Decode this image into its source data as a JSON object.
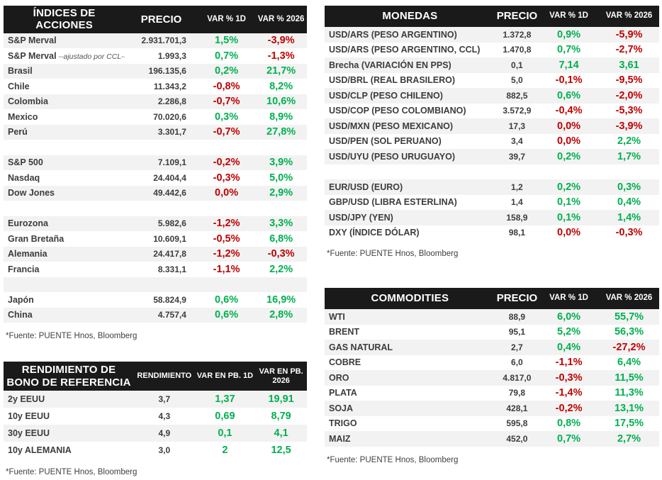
{
  "colors": {
    "positive": "#00b050",
    "negative": "#c00000",
    "header_bg": "#1a1a1a",
    "stripe": "#f2f2f2"
  },
  "indices": {
    "title": "ÍNDICES DE ACCIONES",
    "columns": [
      "PRECIO",
      "VAR % 1D",
      "VAR % 2026"
    ],
    "source": "*Fuente: PUENTE Hnos, Bloomberg",
    "rows": [
      {
        "label": "S&P Merval",
        "price": "2.931.701,3",
        "var1d": "1,5%",
        "var1d_color": "pos",
        "var2026": "-3,9%",
        "var2026_color": "neg"
      },
      {
        "label": "S&P Merval",
        "note": "--ajustado por CCL--",
        "price": "1.993,3",
        "var1d": "0,7%",
        "var1d_color": "pos",
        "var2026": "-1,3%",
        "var2026_color": "neg"
      },
      {
        "label": "Brasil",
        "price": "196.135,6",
        "var1d": "0,2%",
        "var1d_color": "pos",
        "var2026": "21,7%",
        "var2026_color": "pos"
      },
      {
        "label": "Chile",
        "price": "11.343,2",
        "var1d": "-0,8%",
        "var1d_color": "neg",
        "var2026": "8,2%",
        "var2026_color": "pos"
      },
      {
        "label": "Colombia",
        "price": "2.286,8",
        "var1d": "-0,7%",
        "var1d_color": "neg",
        "var2026": "10,6%",
        "var2026_color": "pos"
      },
      {
        "label": "Mexico",
        "price": "70.020,6",
        "var1d": "0,3%",
        "var1d_color": "pos",
        "var2026": "8,9%",
        "var2026_color": "pos"
      },
      {
        "label": "Perú",
        "price": "3.301,7",
        "var1d": "-0,7%",
        "var1d_color": "neg",
        "var2026": "27,8%",
        "var2026_color": "pos"
      },
      {
        "separator": true
      },
      {
        "label": "S&P 500",
        "price": "7.109,1",
        "var1d": "-0,2%",
        "var1d_color": "neg",
        "var2026": "3,9%",
        "var2026_color": "pos"
      },
      {
        "label": "Nasdaq",
        "price": "24.404,4",
        "var1d": "-0,3%",
        "var1d_color": "neg",
        "var2026": "5,0%",
        "var2026_color": "pos"
      },
      {
        "label": "Dow Jones",
        "price": "49.442,6",
        "var1d": "0,0%",
        "var1d_color": "neg",
        "var2026": "2,9%",
        "var2026_color": "pos"
      },
      {
        "separator": true
      },
      {
        "label": "Eurozona",
        "price": "5.982,6",
        "var1d": "-1,2%",
        "var1d_color": "neg",
        "var2026": "3,3%",
        "var2026_color": "pos"
      },
      {
        "label": "Gran Bretaña",
        "price": "10.609,1",
        "var1d": "-0,5%",
        "var1d_color": "neg",
        "var2026": "6,8%",
        "var2026_color": "pos"
      },
      {
        "label": "Alemania",
        "price": "24.417,8",
        "var1d": "-1,2%",
        "var1d_color": "neg",
        "var2026": "-0,3%",
        "var2026_color": "neg"
      },
      {
        "label": "Francia",
        "price": "8.331,1",
        "var1d": "-1,1%",
        "var1d_color": "neg",
        "var2026": "2,2%",
        "var2026_color": "pos"
      },
      {
        "separator": true
      },
      {
        "label": "Japón",
        "price": "58.824,9",
        "var1d": "0,6%",
        "var1d_color": "pos",
        "var2026": "16,9%",
        "var2026_color": "pos"
      },
      {
        "label": "China",
        "price": "4.757,4",
        "var1d": "0,6%",
        "var1d_color": "pos",
        "var2026": "2,8%",
        "var2026_color": "pos"
      }
    ]
  },
  "bonds": {
    "title": "RENDIMIENTO DE BONO DE REFERENCIA",
    "columns": [
      "RENDIMIENTO",
      "VAR EN PB. 1D",
      "VAR EN PB. 2026"
    ],
    "source": "*Fuente: PUENTE Hnos, Bloomberg",
    "rows": [
      {
        "label": "2y EEUU",
        "price": "3,7",
        "var1d": "1,37",
        "var1d_color": "pos",
        "var2026": "19,91",
        "var2026_color": "pos"
      },
      {
        "label": "10y EEUU",
        "price": "4,3",
        "var1d": "0,69",
        "var1d_color": "pos",
        "var2026": "8,79",
        "var2026_color": "pos"
      },
      {
        "label": "30y EEUU",
        "price": "4,9",
        "var1d": "0,1",
        "var1d_color": "pos",
        "var2026": "4,1",
        "var2026_color": "pos"
      },
      {
        "label": "10y ALEMANIA",
        "price": "3,0",
        "var1d": "2",
        "var1d_color": "pos",
        "var2026": "12,5",
        "var2026_color": "pos"
      }
    ]
  },
  "currencies": {
    "title": "MONEDAS",
    "columns": [
      "PRECIO",
      "VAR % 1D",
      "VAR % 2026"
    ],
    "source": "*Fuente: PUENTE Hnos, Bloomberg",
    "rows": [
      {
        "label": "USD/ARS (PESO ARGENTINO)",
        "price": "1.372,8",
        "var1d": "0,9%",
        "var1d_color": "pos",
        "var2026": "-5,9%",
        "var2026_color": "neg"
      },
      {
        "label": "USD/ARS (PESO ARGENTINO, CCL)",
        "price": "1.470,8",
        "var1d": "0,7%",
        "var1d_color": "pos",
        "var2026": "-2,7%",
        "var2026_color": "neg"
      },
      {
        "label": "Brecha (VARIACIÓN EN PPS)",
        "price": "0,1",
        "var1d": "7,14",
        "var1d_color": "pos",
        "var2026": "3,61",
        "var2026_color": "pos"
      },
      {
        "label": "USD/BRL (REAL BRASILERO)",
        "price": "5,0",
        "var1d": "-0,1%",
        "var1d_color": "neg",
        "var2026": "-9,5%",
        "var2026_color": "neg"
      },
      {
        "label": "USD/CLP (PESO CHILENO)",
        "price": "882,5",
        "var1d": "0,6%",
        "var1d_color": "pos",
        "var2026": "-2,0%",
        "var2026_color": "neg"
      },
      {
        "label": "USD/COP (PESO COLOMBIANO)",
        "price": "3.572,9",
        "var1d": "-0,4%",
        "var1d_color": "neg",
        "var2026": "-5,3%",
        "var2026_color": "neg"
      },
      {
        "label": "USD/MXN (PESO MEXICANO)",
        "price": "17,3",
        "var1d": "0,0%",
        "var1d_color": "neg",
        "var2026": "-3,9%",
        "var2026_color": "neg"
      },
      {
        "label": "USD/PEN (SOL PERUANO)",
        "price": "3,4",
        "var1d": "0,0%",
        "var1d_color": "neg",
        "var2026": "2,2%",
        "var2026_color": "pos"
      },
      {
        "label": "USD/UYU (PESO URUGUAYO)",
        "price": "39,7",
        "var1d": "0,2%",
        "var1d_color": "pos",
        "var2026": "1,7%",
        "var2026_color": "pos"
      },
      {
        "separator": true
      },
      {
        "label": "EUR/USD (EURO)",
        "price": "1,2",
        "var1d": "0,2%",
        "var1d_color": "pos",
        "var2026": "0,3%",
        "var2026_color": "pos"
      },
      {
        "label": "GBP/USD (LIBRA ESTERLINA)",
        "price": "1,4",
        "var1d": "0,1%",
        "var1d_color": "pos",
        "var2026": "0,4%",
        "var2026_color": "pos"
      },
      {
        "label": "USD/JPY (YEN)",
        "price": "158,9",
        "var1d": "0,1%",
        "var1d_color": "pos",
        "var2026": "1,4%",
        "var2026_color": "pos"
      },
      {
        "label": "DXY (ÍNDICE DÓLAR)",
        "price": "98,1",
        "var1d": "0,0%",
        "var1d_color": "neg",
        "var2026": "-0,3%",
        "var2026_color": "neg"
      }
    ]
  },
  "commodities": {
    "title": "COMMODITIES",
    "columns": [
      "PRECIO",
      "VAR % 1D",
      "VAR % 2026"
    ],
    "source": "*Fuente: PUENTE Hnos, Bloomberg",
    "rows": [
      {
        "label": "WTI",
        "price": "88,9",
        "var1d": "6,0%",
        "var1d_color": "pos",
        "var2026": "55,7%",
        "var2026_color": "pos"
      },
      {
        "label": "BRENT",
        "price": "95,1",
        "var1d": "5,2%",
        "var1d_color": "pos",
        "var2026": "56,3%",
        "var2026_color": "pos"
      },
      {
        "label": "GAS NATURAL",
        "price": "2,7",
        "var1d": "0,4%",
        "var1d_color": "pos",
        "var2026": "-27,2%",
        "var2026_color": "neg"
      },
      {
        "label": "COBRE",
        "price": "6,0",
        "var1d": "-1,1%",
        "var1d_color": "neg",
        "var2026": "6,4%",
        "var2026_color": "pos"
      },
      {
        "label": "ORO",
        "price": "4.817,0",
        "var1d": "-0,3%",
        "var1d_color": "neg",
        "var2026": "11,5%",
        "var2026_color": "pos"
      },
      {
        "label": "PLATA",
        "price": "79,8",
        "var1d": "-1,4%",
        "var1d_color": "neg",
        "var2026": "11,3%",
        "var2026_color": "pos"
      },
      {
        "label": "SOJA",
        "price": "428,1",
        "var1d": "-0,2%",
        "var1d_color": "neg",
        "var2026": "13,1%",
        "var2026_color": "pos"
      },
      {
        "label": "TRIGO",
        "price": "595,8",
        "var1d": "0,8%",
        "var1d_color": "pos",
        "var2026": "17,5%",
        "var2026_color": "pos"
      },
      {
        "label": "MAIZ",
        "price": "452,0",
        "var1d": "0,7%",
        "var1d_color": "pos",
        "var2026": "2,7%",
        "var2026_color": "pos"
      }
    ]
  }
}
